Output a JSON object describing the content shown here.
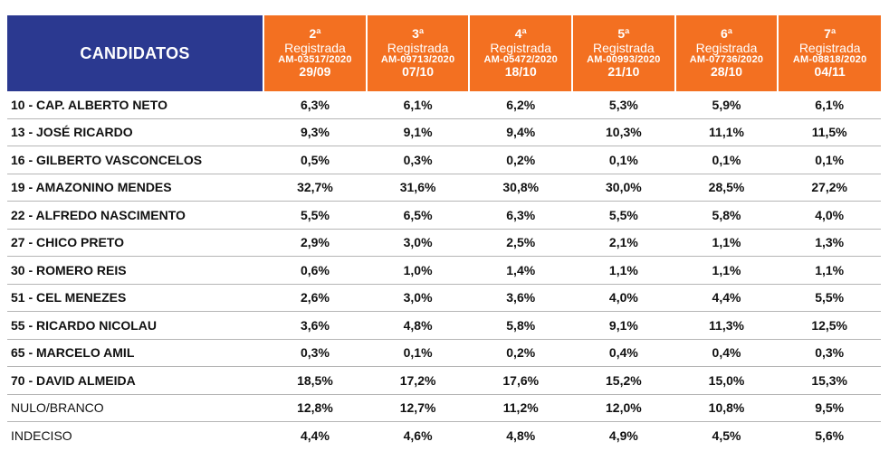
{
  "header": {
    "candidates_label": "CANDIDATOS",
    "polls": [
      {
        "ordinal": "2ª",
        "label": "Registrada",
        "code": "AM-03517/2020",
        "date": "29/09"
      },
      {
        "ordinal": "3ª",
        "label": "Registrada",
        "code": "AM-09713/2020",
        "date": "07/10"
      },
      {
        "ordinal": "4ª",
        "label": "Registrada",
        "code": "AM-05472/2020",
        "date": "18/10"
      },
      {
        "ordinal": "5ª",
        "label": "Registrada",
        "code": "AM-00993/2020",
        "date": "21/10"
      },
      {
        "ordinal": "6ª",
        "label": "Registrada",
        "code": "AM-07736/2020",
        "date": "28/10"
      },
      {
        "ordinal": "7ª",
        "label": "Registrada",
        "code": "AM-08818/2020",
        "date": "04/11"
      }
    ]
  },
  "rows": [
    {
      "name": "10 - CAP. ALBERTO NETO",
      "values": [
        "6,3%",
        "6,1%",
        "6,2%",
        "5,3%",
        "5,9%",
        "6,1%"
      ]
    },
    {
      "name": "13 - JOSÉ RICARDO",
      "values": [
        "9,3%",
        "9,1%",
        "9,4%",
        "10,3%",
        "11,1%",
        "11,5%"
      ]
    },
    {
      "name": "16 - GILBERTO VASCONCELOS",
      "values": [
        "0,5%",
        "0,3%",
        "0,2%",
        "0,1%",
        "0,1%",
        "0,1%"
      ]
    },
    {
      "name": "19 - AMAZONINO MENDES",
      "values": [
        "32,7%",
        "31,6%",
        "30,8%",
        "30,0%",
        "28,5%",
        "27,2%"
      ]
    },
    {
      "name": "22 - ALFREDO NASCIMENTO",
      "values": [
        "5,5%",
        "6,5%",
        "6,3%",
        "5,5%",
        "5,8%",
        "4,0%"
      ]
    },
    {
      "name": "27 - CHICO PRETO",
      "values": [
        "2,9%",
        "3,0%",
        "2,5%",
        "2,1%",
        "1,1%",
        "1,3%"
      ]
    },
    {
      "name": "30 - ROMERO REIS",
      "values": [
        "0,6%",
        "1,0%",
        "1,4%",
        "1,1%",
        "1,1%",
        "1,1%"
      ]
    },
    {
      "name": "51 - CEL MENEZES",
      "values": [
        "2,6%",
        "3,0%",
        "3,6%",
        "4,0%",
        "4,4%",
        "5,5%"
      ]
    },
    {
      "name": "55 - RICARDO NICOLAU",
      "values": [
        "3,6%",
        "4,8%",
        "5,8%",
        "9,1%",
        "11,3%",
        "12,5%"
      ]
    },
    {
      "name": "65 - MARCELO AMIL",
      "values": [
        "0,3%",
        "0,1%",
        "0,2%",
        "0,4%",
        "0,4%",
        "0,3%"
      ]
    },
    {
      "name": "70 - DAVID ALMEIDA",
      "values": [
        "18,5%",
        "17,2%",
        "17,6%",
        "15,2%",
        "15,0%",
        "15,3%"
      ]
    },
    {
      "name": "NULO/BRANCO",
      "values": [
        "12,8%",
        "12,7%",
        "11,2%",
        "12,0%",
        "10,8%",
        "9,5%"
      ]
    },
    {
      "name": "INDECISO",
      "values": [
        "4,4%",
        "4,6%",
        "4,8%",
        "4,9%",
        "4,5%",
        "5,6%"
      ]
    }
  ],
  "colors": {
    "header_blue": "#2b3990",
    "header_orange": "#f37021",
    "row_border": "#b5b5b5"
  }
}
